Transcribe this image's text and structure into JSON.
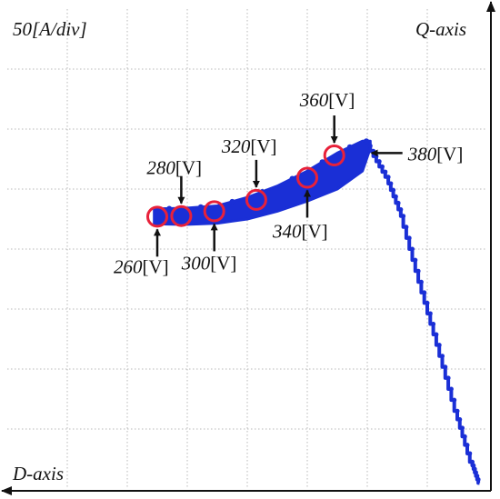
{
  "chart_data": {
    "type": "scatter",
    "title": "",
    "scale_label": "50[A/div]",
    "xlabel": "D-axis",
    "ylabel": "Q-axis",
    "grid": true,
    "divisions": {
      "x": 8,
      "y": 8
    },
    "xlim": [
      -4,
      4
    ],
    "ylim": [
      -4,
      4
    ],
    "trace_color": "#1a2fd6",
    "marker_color": "#e8213a",
    "band": [
      {
        "x": -1.55,
        "y_low": 0.42,
        "y_high": 0.67
      },
      {
        "x": -1.05,
        "y_low": 0.41,
        "y_high": 0.68
      },
      {
        "x": -0.5,
        "y_low": 0.43,
        "y_high": 0.72
      },
      {
        "x": 0.0,
        "y_low": 0.5,
        "y_high": 0.86
      },
      {
        "x": 0.5,
        "y_low": 0.63,
        "y_high": 1.05
      },
      {
        "x": 1.0,
        "y_low": 0.8,
        "y_high": 1.3
      },
      {
        "x": 1.5,
        "y_low": 1.0,
        "y_high": 1.6
      },
      {
        "x": 1.92,
        "y_low": 1.3,
        "y_high": 1.8
      },
      {
        "x": 2.05,
        "y_low": 1.68,
        "y_high": 1.8
      }
    ],
    "tail": [
      {
        "x": 2.05,
        "y": 1.72
      },
      {
        "x": 2.35,
        "y": 1.2
      },
      {
        "x": 2.6,
        "y": 0.55
      },
      {
        "x": 2.9,
        "y": -0.55
      },
      {
        "x": 3.2,
        "y": -1.6
      },
      {
        "x": 3.5,
        "y": -2.7
      },
      {
        "x": 3.75,
        "y": -3.55
      },
      {
        "x": 3.87,
        "y": -3.9
      }
    ],
    "markers": [
      {
        "voltage": "260",
        "x": -1.5,
        "y": 0.54
      },
      {
        "voltage": "280",
        "x": -1.1,
        "y": 0.55
      },
      {
        "voltage": "300",
        "x": -0.55,
        "y": 0.63
      },
      {
        "voltage": "320",
        "x": 0.15,
        "y": 0.82
      },
      {
        "voltage": "340",
        "x": 1.0,
        "y": 1.19
      },
      {
        "voltage": "360",
        "x": 1.45,
        "y": 1.56
      },
      {
        "voltage": "380",
        "x": 1.95,
        "y": 1.6
      }
    ],
    "unit": "[V]"
  }
}
